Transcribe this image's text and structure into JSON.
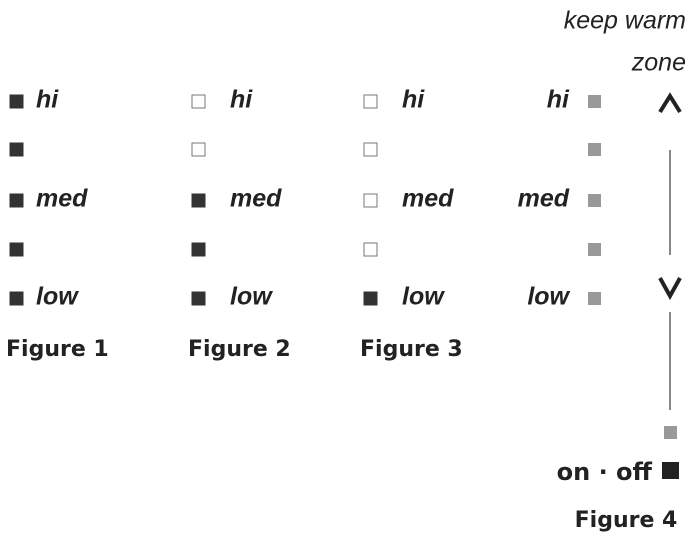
{
  "figures": [
    {
      "caption": "Figure 1",
      "levels": [
        {
          "label": "hi",
          "lit": true
        },
        {
          "lit": true
        },
        {
          "label": "med",
          "lit": true
        },
        {
          "lit": true
        },
        {
          "label": "low",
          "lit": true
        }
      ]
    },
    {
      "caption": "Figure 2",
      "levels": [
        {
          "label": "hi",
          "lit": false
        },
        {
          "lit": false
        },
        {
          "label": "med",
          "lit": true
        },
        {
          "lit": true
        },
        {
          "label": "low",
          "lit": true
        }
      ]
    },
    {
      "caption": "Figure 3",
      "levels": [
        {
          "label": "hi",
          "lit": false
        },
        {
          "lit": false
        },
        {
          "label": "med",
          "lit": false
        },
        {
          "lit": false
        },
        {
          "label": "low",
          "lit": true
        }
      ]
    }
  ],
  "figure4": {
    "caption": "Figure 4",
    "zone_label": [
      "keep warm",
      "zone"
    ],
    "power_label": "on · off",
    "levels": [
      {
        "label": "hi"
      },
      {},
      {
        "label": "med"
      },
      {},
      {
        "label": "low"
      }
    ]
  }
}
